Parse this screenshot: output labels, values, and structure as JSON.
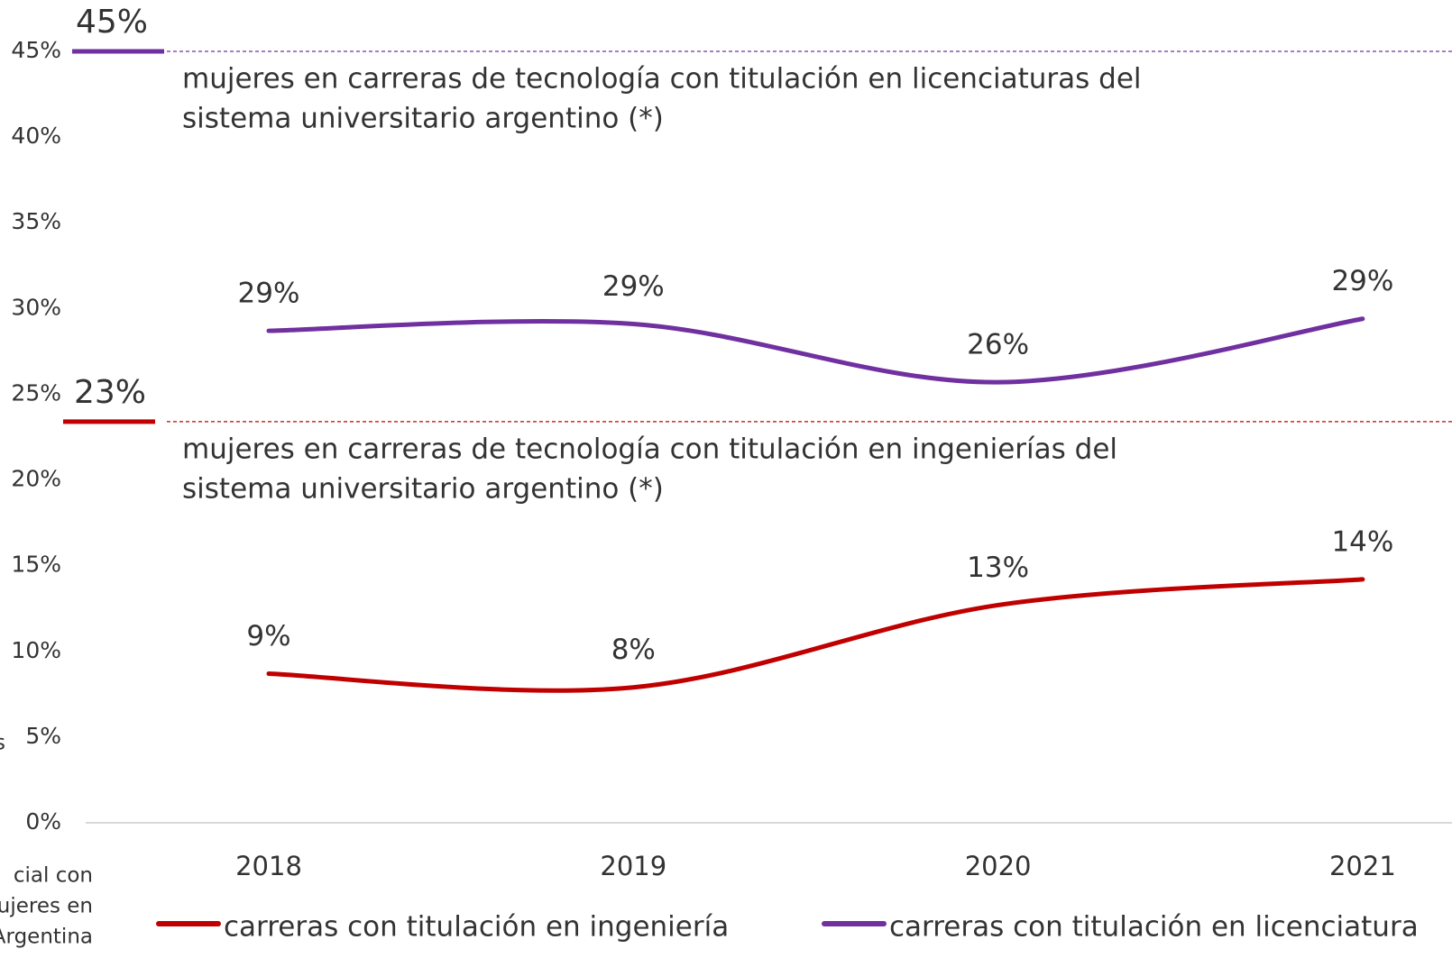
{
  "chart_data": {
    "type": "line",
    "categories": [
      "2018",
      "2019",
      "2020",
      "2021"
    ],
    "series": [
      {
        "name": "carreras con titulación en ingeniería",
        "color": "#c00000",
        "values": [
          8.7,
          7.9,
          12.7,
          14.2
        ],
        "value_labels": [
          "9%",
          "8%",
          "13%",
          "14%"
        ]
      },
      {
        "name": "carreras con titulación en licenciatura",
        "color": "#7030a0",
        "values": [
          28.7,
          29.1,
          25.7,
          29.4
        ],
        "value_labels": [
          "29%",
          "29%",
          "26%",
          "29%"
        ]
      }
    ],
    "ylim": [
      0,
      45
    ],
    "yticks": [
      {
        "value": 0,
        "label": "0%"
      },
      {
        "value": 5,
        "label": "5%"
      },
      {
        "value": 10,
        "label": "10%"
      },
      {
        "value": 15,
        "label": "15%"
      },
      {
        "value": 20,
        "label": "20%"
      },
      {
        "value": 25,
        "label": "25%"
      },
      {
        "value": 30,
        "label": "30%"
      },
      {
        "value": 35,
        "label": "35%"
      },
      {
        "value": 40,
        "label": "40%"
      },
      {
        "value": 45,
        "label": "45%"
      }
    ],
    "grid": false,
    "reference_lines": [
      {
        "value": 45,
        "label": "45%",
        "color": "#7030a0",
        "text": [
          "mujeres en carreras de tecnología con titulación en licenciaturas del",
          "sistema universitario argentino (*)"
        ]
      },
      {
        "value": 23.4,
        "label": "23%",
        "color": "#c00000",
        "text": [
          "mujeres en carreras de tecnología con titulación en ingenierías del",
          "sistema universitario argentino (*)"
        ]
      }
    ],
    "annotations": [
      "s",
      "cial con",
      "mujeres en",
      "n Argentina"
    ],
    "legend": "bottom"
  }
}
